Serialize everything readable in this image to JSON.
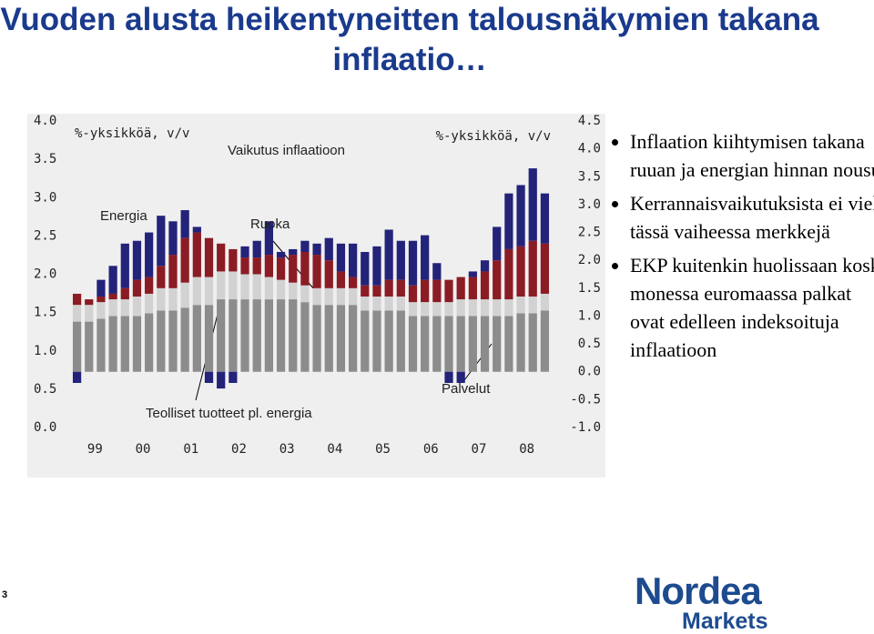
{
  "chart_data": {
    "type": "bar",
    "stacked": true,
    "title": "Vuoden alusta heikentyneitten talousnäkymien takana inflaatio…",
    "subtitle": "Vaikutus inflaatioon",
    "ylabel": "%-yksikköä, v/v",
    "y2label": "%-yksikköä, v/v",
    "categories": [
      "99",
      null,
      null,
      null,
      "00",
      null,
      null,
      null,
      "01",
      null,
      null,
      null,
      "02",
      null,
      null,
      null,
      "03",
      null,
      null,
      null,
      "04",
      null,
      null,
      null,
      "05",
      null,
      null,
      null,
      "06",
      null,
      null,
      null,
      "07",
      null,
      null,
      null,
      "08",
      null,
      null,
      null
    ],
    "series": [
      {
        "name": "Palvelut",
        "color": "#8c8c8c",
        "values": [
          0.9,
          0.9,
          0.95,
          1.0,
          1.0,
          1.0,
          1.05,
          1.1,
          1.1,
          1.15,
          1.2,
          1.2,
          1.3,
          1.3,
          1.3,
          1.3,
          1.3,
          1.3,
          1.3,
          1.25,
          1.2,
          1.2,
          1.2,
          1.2,
          1.1,
          1.1,
          1.1,
          1.1,
          1.0,
          1.0,
          1.0,
          1.0,
          1.0,
          1.0,
          1.0,
          1.0,
          1.0,
          1.05,
          1.05,
          1.1
        ]
      },
      {
        "name": "Teolliset tuotteet pl. energia",
        "color": "#d2d2d2",
        "values": [
          0.3,
          0.3,
          0.3,
          0.3,
          0.3,
          0.35,
          0.35,
          0.4,
          0.4,
          0.45,
          0.5,
          0.5,
          0.5,
          0.5,
          0.45,
          0.45,
          0.4,
          0.35,
          0.3,
          0.3,
          0.3,
          0.3,
          0.3,
          0.3,
          0.25,
          0.25,
          0.25,
          0.25,
          0.25,
          0.25,
          0.25,
          0.25,
          0.3,
          0.3,
          0.3,
          0.3,
          0.3,
          0.3,
          0.3,
          0.3
        ]
      },
      {
        "name": "Ruoka",
        "color": "#8b1c24",
        "values": [
          0.2,
          0.1,
          0.1,
          0.1,
          0.2,
          0.3,
          0.3,
          0.4,
          0.6,
          0.8,
          0.8,
          0.7,
          0.5,
          0.4,
          0.3,
          0.3,
          0.4,
          0.4,
          0.5,
          0.6,
          0.6,
          0.5,
          0.3,
          0.2,
          0.2,
          0.2,
          0.3,
          0.3,
          0.3,
          0.4,
          0.4,
          0.4,
          0.4,
          0.4,
          0.5,
          0.7,
          0.9,
          0.9,
          1.0,
          0.9
        ]
      },
      {
        "name": "Energia",
        "color": "#23237a",
        "values": [
          -0.2,
          0.0,
          0.3,
          0.5,
          0.8,
          0.7,
          0.8,
          0.9,
          0.6,
          0.5,
          0.1,
          -0.2,
          -0.3,
          -0.2,
          0.2,
          0.3,
          0.6,
          0.1,
          0.1,
          0.2,
          0.2,
          0.4,
          0.5,
          0.6,
          0.6,
          0.7,
          0.9,
          0.7,
          0.8,
          0.8,
          0.3,
          -0.2,
          -0.2,
          0.1,
          0.2,
          0.6,
          1.0,
          1.1,
          1.3,
          0.9
        ]
      }
    ],
    "ylim": [
      -1,
      4.5
    ],
    "yticks": [
      {
        "value": -1,
        "label": "-1.0"
      },
      -0.5,
      {
        "value": 0,
        "label": "0.0"
      },
      0.5,
      {
        "value": 1,
        "label": "1.0"
      },
      1.5,
      {
        "value": 2,
        "label": "2.0"
      },
      2.5,
      {
        "value": 3,
        "label": "3.0"
      },
      3.5,
      {
        "value": 4,
        "label": "4.0"
      },
      4.5
    ],
    "y2lim": [
      0,
      4
    ],
    "y2ticks": [
      {
        "value": 0,
        "label": "0.0"
      },
      0.5,
      {
        "value": 1,
        "label": "1.0"
      },
      1.5,
      {
        "value": 2,
        "label": "2.0"
      },
      2.5,
      {
        "value": 3,
        "label": "3.0"
      },
      3.5,
      {
        "value": 4,
        "label": "4.0"
      }
    ]
  },
  "bullets": [
    "Inflaation kiihtymisen takana ruuan ja energian hinnan nousu",
    "Kerrannaisvaikutuksista ei vielä tässä vaiheessa merkkejä",
    "EKP kuitenkin huolissaan koska monessa euromaassa palkat ovat edelleen indeksoituja inflaatioon"
  ],
  "page_number": "3",
  "logo": {
    "name": "Nordea",
    "sub": "Markets"
  }
}
